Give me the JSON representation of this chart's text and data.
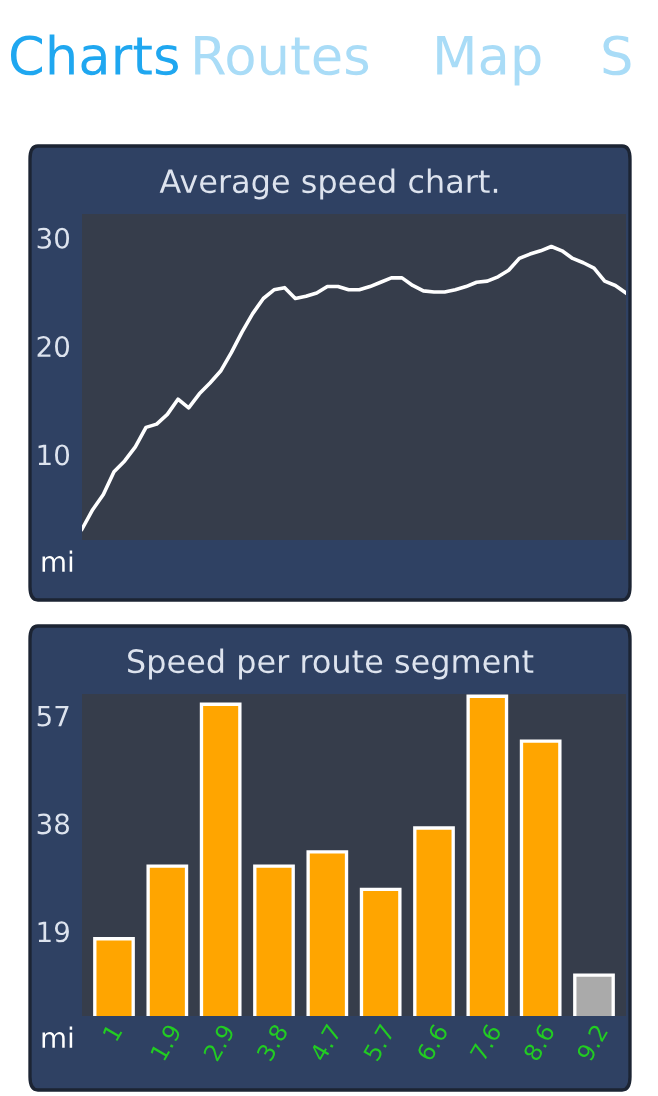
{
  "chart_data": [
    {
      "type": "line",
      "title": "Average speed chart.",
      "xlabel": "mi",
      "annotations": [
        "Charts",
        "Routes",
        "Map",
        "S"
      ],
      "categories": [
        null,
        null,
        null,
        null,
        null,
        null,
        null,
        null,
        null,
        null,
        null,
        null,
        null,
        null,
        null,
        null,
        null,
        null,
        null,
        null,
        null,
        null,
        null,
        null,
        null,
        null,
        null,
        null,
        null,
        null,
        null,
        null,
        null,
        null,
        null,
        null,
        null,
        null,
        null,
        null,
        null,
        null,
        null,
        null,
        null,
        null,
        null,
        null,
        null,
        null,
        null,
        null
      ],
      "series": [
        {
          "color": "#ffffff",
          "values": [
            3.1,
            4.9,
            6.3,
            8.4,
            9.4,
            10.7,
            12.5,
            12.8,
            13.7,
            15.1,
            14.3,
            15.6,
            16.6,
            17.7,
            19.4,
            21.3,
            23.0,
            24.4,
            25.2,
            25.4,
            24.4,
            24.6,
            24.9,
            25.5,
            25.5,
            25.2,
            25.2,
            25.5,
            25.9,
            26.3,
            26.3,
            25.6,
            25.1,
            25.0,
            25.0,
            25.2,
            25.5,
            25.9,
            26.0,
            26.4,
            27.0,
            28.1,
            28.5,
            28.8,
            29.2,
            28.8,
            28.1,
            27.7,
            27.2,
            26.0,
            25.6,
            24.9
          ]
        }
      ],
      "ylim": [
        2.1,
        32.2
      ],
      "yticks": [
        10,
        20,
        30
      ],
      "tick_labels": "y",
      "grid": false,
      "legend": false,
      "marker": "none",
      "line_style": "solid"
    },
    {
      "type": "bar",
      "title": "Speed per route segment",
      "xlabel": "mi",
      "categories": [
        "1",
        "1.9",
        "2.9",
        "3.8",
        "4.7",
        "5.7",
        "6.6",
        "7.6",
        "8.6",
        "9.2"
      ],
      "values": [
        17.7,
        30.5,
        59.0,
        30.5,
        33.0,
        26.4,
        37.2,
        60.4,
        52.5,
        11.3
      ],
      "colors": [
        "#ffa500",
        "#ffa500",
        "#ffa500",
        "#ffa500",
        "#ffa500",
        "#ffa500",
        "#ffa500",
        "#ffa500",
        "#ffa500",
        "#aaaaaa"
      ],
      "ylim": [
        4.1,
        60.8
      ],
      "yticks": [
        19,
        38,
        57
      ],
      "grid": false,
      "legend": false
    }
  ]
}
